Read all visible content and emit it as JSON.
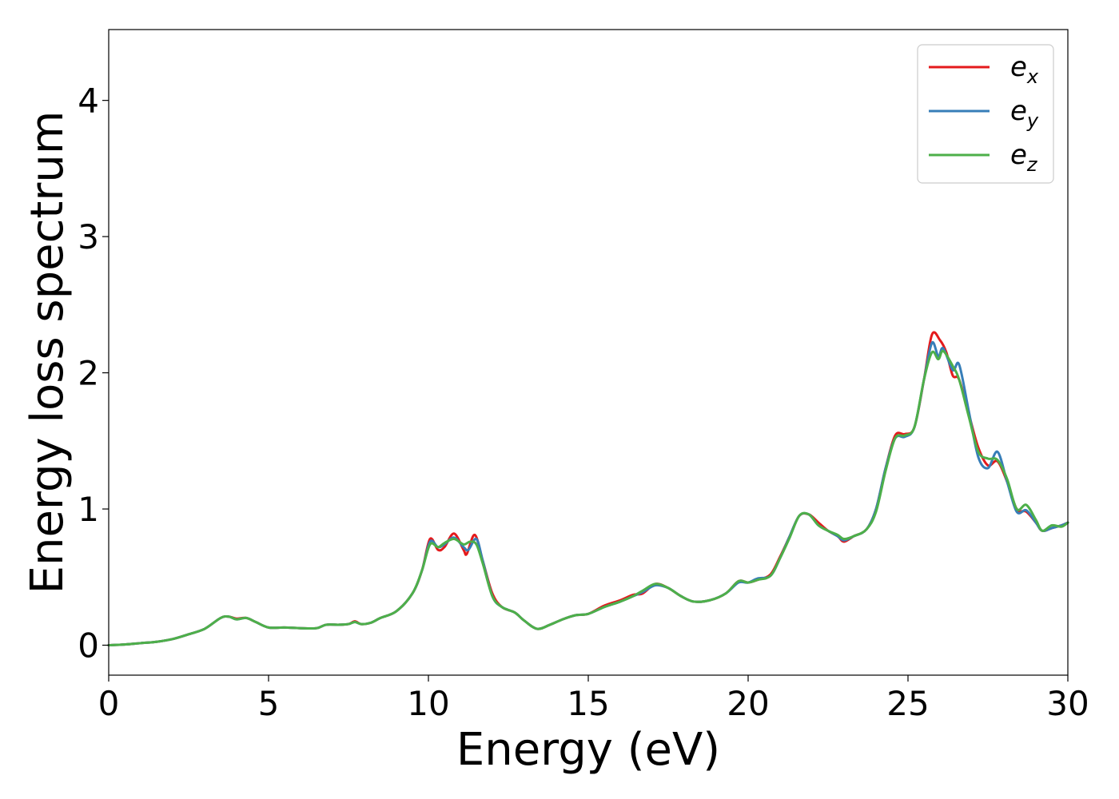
{
  "chart_data": {
    "type": "line",
    "xlabel": "Energy (eV)",
    "ylabel": "Energy loss spectrum",
    "xlim": [
      0,
      30
    ],
    "ylim": [
      -0.22,
      4.52
    ],
    "xticks": [
      "0",
      "5",
      "10",
      "15",
      "20",
      "25",
      "30"
    ],
    "xtick_values": [
      0,
      5,
      10,
      15,
      20,
      25,
      30
    ],
    "yticks": [
      "0",
      "1",
      "2",
      "3",
      "4"
    ],
    "ytick_values": [
      0,
      1,
      2,
      3,
      4
    ],
    "grid": false,
    "legend_position": "top-right",
    "series": [
      {
        "name": "e",
        "subscript": "x",
        "color": "#e41a1c",
        "points": [
          [
            0,
            0
          ],
          [
            0.5,
            0.005
          ],
          [
            1,
            0.015
          ],
          [
            1.5,
            0.025
          ],
          [
            2,
            0.045
          ],
          [
            2.5,
            0.08
          ],
          [
            3,
            0.12
          ],
          [
            3.5,
            0.2
          ],
          [
            3.75,
            0.21
          ],
          [
            4,
            0.195
          ],
          [
            4.3,
            0.2
          ],
          [
            4.6,
            0.17
          ],
          [
            5,
            0.13
          ],
          [
            5.5,
            0.13
          ],
          [
            6,
            0.125
          ],
          [
            6.5,
            0.125
          ],
          [
            6.8,
            0.15
          ],
          [
            7.2,
            0.15
          ],
          [
            7.5,
            0.155
          ],
          [
            7.7,
            0.175
          ],
          [
            7.9,
            0.155
          ],
          [
            8.2,
            0.165
          ],
          [
            8.5,
            0.2
          ],
          [
            9,
            0.25
          ],
          [
            9.5,
            0.38
          ],
          [
            9.8,
            0.55
          ],
          [
            10.05,
            0.78
          ],
          [
            10.3,
            0.7
          ],
          [
            10.5,
            0.72
          ],
          [
            10.8,
            0.82
          ],
          [
            11.1,
            0.7
          ],
          [
            11.2,
            0.67
          ],
          [
            11.45,
            0.81
          ],
          [
            11.7,
            0.62
          ],
          [
            12,
            0.38
          ],
          [
            12.3,
            0.28
          ],
          [
            12.7,
            0.24
          ],
          [
            13,
            0.18
          ],
          [
            13.4,
            0.12
          ],
          [
            13.8,
            0.15
          ],
          [
            14.2,
            0.19
          ],
          [
            14.6,
            0.22
          ],
          [
            15,
            0.23
          ],
          [
            15.5,
            0.29
          ],
          [
            16,
            0.33
          ],
          [
            16.4,
            0.37
          ],
          [
            16.7,
            0.38
          ],
          [
            17.1,
            0.45
          ],
          [
            17.5,
            0.42
          ],
          [
            17.9,
            0.36
          ],
          [
            18.3,
            0.32
          ],
          [
            18.8,
            0.33
          ],
          [
            19.3,
            0.38
          ],
          [
            19.7,
            0.47
          ],
          [
            20,
            0.46
          ],
          [
            20.3,
            0.48
          ],
          [
            20.7,
            0.52
          ],
          [
            21,
            0.65
          ],
          [
            21.3,
            0.8
          ],
          [
            21.6,
            0.95
          ],
          [
            21.9,
            0.96
          ],
          [
            22.2,
            0.9
          ],
          [
            22.5,
            0.84
          ],
          [
            22.8,
            0.8
          ],
          [
            23,
            0.76
          ],
          [
            23.3,
            0.8
          ],
          [
            23.7,
            0.85
          ],
          [
            24,
            1.0
          ],
          [
            24.3,
            1.3
          ],
          [
            24.6,
            1.54
          ],
          [
            24.9,
            1.55
          ],
          [
            25.2,
            1.6
          ],
          [
            25.5,
            1.95
          ],
          [
            25.75,
            2.28
          ],
          [
            26,
            2.24
          ],
          [
            26.2,
            2.15
          ],
          [
            26.4,
            1.98
          ],
          [
            26.6,
            1.95
          ],
          [
            26.9,
            1.7
          ],
          [
            27.2,
            1.45
          ],
          [
            27.5,
            1.32
          ],
          [
            27.8,
            1.35
          ],
          [
            28.1,
            1.2
          ],
          [
            28.4,
            1.0
          ],
          [
            28.7,
            0.98
          ],
          [
            29,
            0.9
          ],
          [
            29.2,
            0.84
          ],
          [
            29.5,
            0.86
          ],
          [
            29.8,
            0.88
          ],
          [
            30,
            0.9
          ]
        ]
      },
      {
        "name": "e",
        "subscript": "y",
        "color": "#377eb8",
        "points": [
          [
            0,
            0
          ],
          [
            0.5,
            0.005
          ],
          [
            1,
            0.015
          ],
          [
            1.5,
            0.025
          ],
          [
            2,
            0.045
          ],
          [
            2.5,
            0.08
          ],
          [
            3,
            0.12
          ],
          [
            3.5,
            0.2
          ],
          [
            3.75,
            0.21
          ],
          [
            4,
            0.19
          ],
          [
            4.3,
            0.2
          ],
          [
            4.6,
            0.17
          ],
          [
            5,
            0.13
          ],
          [
            5.5,
            0.13
          ],
          [
            6,
            0.125
          ],
          [
            6.5,
            0.125
          ],
          [
            6.8,
            0.15
          ],
          [
            7.2,
            0.15
          ],
          [
            7.5,
            0.155
          ],
          [
            7.7,
            0.17
          ],
          [
            7.9,
            0.155
          ],
          [
            8.2,
            0.165
          ],
          [
            8.5,
            0.2
          ],
          [
            9,
            0.25
          ],
          [
            9.5,
            0.38
          ],
          [
            9.8,
            0.55
          ],
          [
            10.05,
            0.76
          ],
          [
            10.3,
            0.72
          ],
          [
            10.5,
            0.74
          ],
          [
            10.8,
            0.79
          ],
          [
            11.1,
            0.72
          ],
          [
            11.25,
            0.7
          ],
          [
            11.5,
            0.78
          ],
          [
            11.7,
            0.62
          ],
          [
            12,
            0.36
          ],
          [
            12.3,
            0.28
          ],
          [
            12.7,
            0.24
          ],
          [
            13,
            0.18
          ],
          [
            13.4,
            0.12
          ],
          [
            13.8,
            0.15
          ],
          [
            14.2,
            0.19
          ],
          [
            14.6,
            0.22
          ],
          [
            15,
            0.23
          ],
          [
            15.5,
            0.28
          ],
          [
            16,
            0.32
          ],
          [
            16.4,
            0.36
          ],
          [
            16.7,
            0.39
          ],
          [
            17.1,
            0.44
          ],
          [
            17.5,
            0.42
          ],
          [
            17.9,
            0.36
          ],
          [
            18.3,
            0.32
          ],
          [
            18.8,
            0.33
          ],
          [
            19.3,
            0.38
          ],
          [
            19.7,
            0.46
          ],
          [
            20,
            0.46
          ],
          [
            20.3,
            0.49
          ],
          [
            20.7,
            0.51
          ],
          [
            21,
            0.64
          ],
          [
            21.3,
            0.8
          ],
          [
            21.6,
            0.95
          ],
          [
            21.9,
            0.96
          ],
          [
            22.2,
            0.88
          ],
          [
            22.5,
            0.84
          ],
          [
            22.8,
            0.8
          ],
          [
            23,
            0.77
          ],
          [
            23.3,
            0.8
          ],
          [
            23.7,
            0.85
          ],
          [
            24,
            1.0
          ],
          [
            24.3,
            1.3
          ],
          [
            24.6,
            1.52
          ],
          [
            24.9,
            1.53
          ],
          [
            25.2,
            1.6
          ],
          [
            25.5,
            1.95
          ],
          [
            25.75,
            2.22
          ],
          [
            25.95,
            2.12
          ],
          [
            26.1,
            2.18
          ],
          [
            26.4,
            2.02
          ],
          [
            26.6,
            2.06
          ],
          [
            26.9,
            1.72
          ],
          [
            27.2,
            1.38
          ],
          [
            27.5,
            1.3
          ],
          [
            27.8,
            1.42
          ],
          [
            28.1,
            1.2
          ],
          [
            28.4,
            0.98
          ],
          [
            28.7,
            0.99
          ],
          [
            29,
            0.9
          ],
          [
            29.2,
            0.84
          ],
          [
            29.5,
            0.86
          ],
          [
            29.8,
            0.88
          ],
          [
            30,
            0.9
          ]
        ]
      },
      {
        "name": "e",
        "subscript": "z",
        "color": "#4daf4a",
        "points": [
          [
            0,
            0
          ],
          [
            0.5,
            0.005
          ],
          [
            1,
            0.015
          ],
          [
            1.5,
            0.025
          ],
          [
            2,
            0.045
          ],
          [
            2.5,
            0.08
          ],
          [
            3,
            0.12
          ],
          [
            3.5,
            0.2
          ],
          [
            3.75,
            0.21
          ],
          [
            4,
            0.19
          ],
          [
            4.3,
            0.2
          ],
          [
            4.6,
            0.17
          ],
          [
            5,
            0.13
          ],
          [
            5.5,
            0.13
          ],
          [
            6,
            0.125
          ],
          [
            6.5,
            0.125
          ],
          [
            6.8,
            0.15
          ],
          [
            7.2,
            0.15
          ],
          [
            7.5,
            0.155
          ],
          [
            7.7,
            0.17
          ],
          [
            7.9,
            0.155
          ],
          [
            8.2,
            0.165
          ],
          [
            8.5,
            0.2
          ],
          [
            9,
            0.25
          ],
          [
            9.5,
            0.38
          ],
          [
            9.8,
            0.55
          ],
          [
            10.05,
            0.74
          ],
          [
            10.3,
            0.72
          ],
          [
            10.5,
            0.75
          ],
          [
            10.8,
            0.78
          ],
          [
            11.1,
            0.74
          ],
          [
            11.3,
            0.76
          ],
          [
            11.5,
            0.74
          ],
          [
            11.7,
            0.6
          ],
          [
            12,
            0.36
          ],
          [
            12.3,
            0.28
          ],
          [
            12.7,
            0.24
          ],
          [
            13,
            0.18
          ],
          [
            13.4,
            0.12
          ],
          [
            13.8,
            0.15
          ],
          [
            14.2,
            0.19
          ],
          [
            14.6,
            0.22
          ],
          [
            15,
            0.23
          ],
          [
            15.5,
            0.28
          ],
          [
            16,
            0.32
          ],
          [
            16.4,
            0.36
          ],
          [
            16.7,
            0.4
          ],
          [
            17.1,
            0.45
          ],
          [
            17.5,
            0.42
          ],
          [
            17.9,
            0.36
          ],
          [
            18.3,
            0.32
          ],
          [
            18.8,
            0.33
          ],
          [
            19.3,
            0.38
          ],
          [
            19.7,
            0.47
          ],
          [
            20,
            0.46
          ],
          [
            20.3,
            0.48
          ],
          [
            20.7,
            0.51
          ],
          [
            21,
            0.64
          ],
          [
            21.3,
            0.79
          ],
          [
            21.6,
            0.95
          ],
          [
            21.9,
            0.96
          ],
          [
            22.2,
            0.88
          ],
          [
            22.5,
            0.84
          ],
          [
            22.8,
            0.81
          ],
          [
            23,
            0.78
          ],
          [
            23.3,
            0.8
          ],
          [
            23.7,
            0.85
          ],
          [
            24,
            0.98
          ],
          [
            24.3,
            1.28
          ],
          [
            24.6,
            1.52
          ],
          [
            24.9,
            1.54
          ],
          [
            25.2,
            1.6
          ],
          [
            25.5,
            1.95
          ],
          [
            25.75,
            2.15
          ],
          [
            25.95,
            2.1
          ],
          [
            26.1,
            2.16
          ],
          [
            26.4,
            2.05
          ],
          [
            26.6,
            1.95
          ],
          [
            26.9,
            1.68
          ],
          [
            27.2,
            1.42
          ],
          [
            27.5,
            1.37
          ],
          [
            27.8,
            1.36
          ],
          [
            28.1,
            1.22
          ],
          [
            28.4,
            1.0
          ],
          [
            28.7,
            1.03
          ],
          [
            29,
            0.92
          ],
          [
            29.2,
            0.84
          ],
          [
            29.5,
            0.88
          ],
          [
            29.8,
            0.87
          ],
          [
            30,
            0.9
          ]
        ]
      }
    ]
  }
}
